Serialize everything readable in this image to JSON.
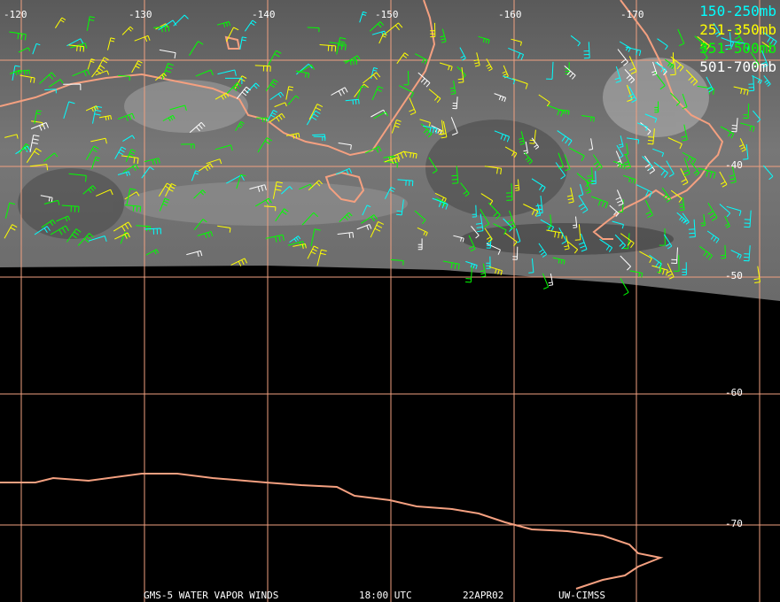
{
  "map": {
    "longitude_labels": [
      "-120",
      "-130",
      "-140",
      "-150",
      "-160",
      "-170"
    ],
    "latitude_labels": [
      "-40",
      "-50",
      "-60",
      "-70"
    ],
    "legend": [
      "150-250mb",
      "251-350mb",
      "351-500mb",
      "501-700mb"
    ],
    "footer": [
      "GMS-5 WATER VAPOR WINDS",
      "18:00 UTC",
      "22APR02",
      "UW-CIMSS"
    ]
  }
}
